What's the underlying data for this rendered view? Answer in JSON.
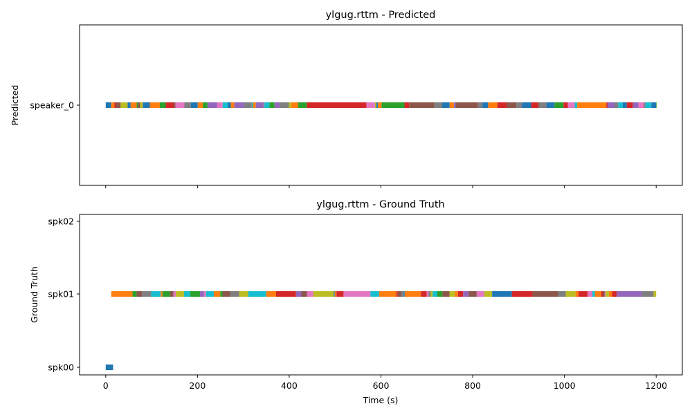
{
  "chart_data": [
    {
      "type": "timeline",
      "title": "ylgug.rttm - Predicted",
      "ylabel": "Predicted",
      "xlabel": "",
      "xlim": [
        -57,
        1257
      ],
      "xticks": [
        0,
        200,
        400,
        600,
        800,
        1000,
        1200
      ],
      "xtick_labels_shown": false,
      "rows": [
        "speaker_0"
      ],
      "segments": [
        {
          "row": "speaker_0",
          "start": 0,
          "end": 1200
        }
      ]
    },
    {
      "type": "timeline",
      "title": "ylgug.rttm - Ground Truth",
      "ylabel": "Ground Truth",
      "xlabel": "Time (s)",
      "xlim": [
        -57,
        1257
      ],
      "xticks": [
        0,
        200,
        400,
        600,
        800,
        1000,
        1200
      ],
      "xtick_labels_shown": true,
      "rows": [
        "spk00",
        "spk01",
        "spk02"
      ],
      "segments": [
        {
          "row": "spk00",
          "start": 0,
          "end": 16
        },
        {
          "row": "spk01",
          "start": 12,
          "end": 1200
        }
      ]
    }
  ],
  "palette": [
    "#1f77b4",
    "#ff7f0e",
    "#2ca02c",
    "#d62728",
    "#9467bd",
    "#8c564b",
    "#e377c2",
    "#7f7f7f",
    "#bcbd22",
    "#17becf"
  ]
}
